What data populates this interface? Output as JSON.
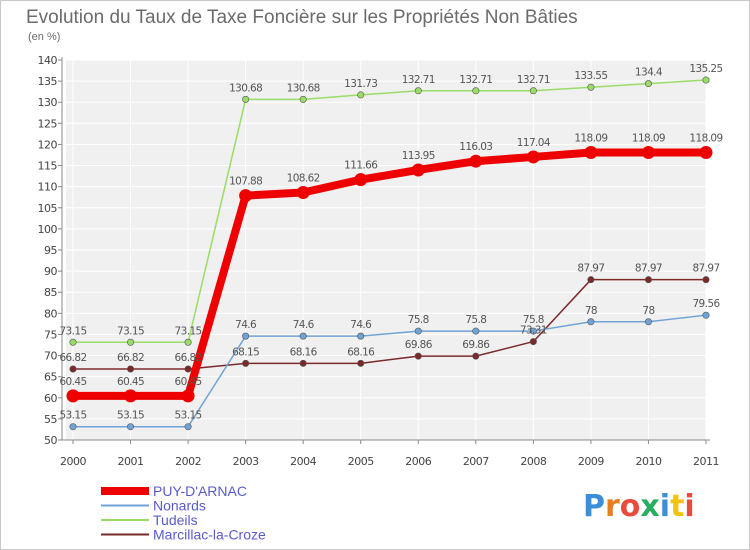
{
  "chart_data": {
    "type": "line",
    "title": "Evolution du Taux de Taxe Foncière sur les Propriétés Non Bâties",
    "ylabel": "(en %)",
    "ylim": [
      50,
      140
    ],
    "yticks": [
      50,
      55,
      60,
      65,
      70,
      75,
      80,
      85,
      90,
      95,
      100,
      105,
      110,
      115,
      120,
      125,
      130,
      135,
      140
    ],
    "x": [
      "2000",
      "2001",
      "2002",
      "2003",
      "2004",
      "2005",
      "2006",
      "2007",
      "2008",
      "2009",
      "2010",
      "2011"
    ],
    "series": [
      {
        "name": "PUY-D'ARNAC",
        "color": "#ee0000",
        "values": [
          60.45,
          60.45,
          60.45,
          107.88,
          108.62,
          111.66,
          113.95,
          116.03,
          117.04,
          118.09,
          118.09,
          118.09
        ],
        "labels": [
          "60.45",
          "60.45",
          "60.45",
          "107.88",
          "108.62",
          "111.66",
          "113.95",
          "116.03",
          "117.04",
          "118.09",
          "118.09",
          "118.09"
        ]
      },
      {
        "name": "Nonards",
        "color": "#6fa3d6",
        "values": [
          53.15,
          53.15,
          53.15,
          74.6,
          74.6,
          74.6,
          75.8,
          75.8,
          75.8,
          78,
          78,
          79.56
        ],
        "labels": [
          "53.15",
          "53.15",
          "53.15",
          "74.6",
          "74.6",
          "74.6",
          "75.8",
          "75.8",
          "75.8",
          "78",
          "78",
          "79.56"
        ]
      },
      {
        "name": "Tudeils",
        "color": "#99dd66",
        "values": [
          73.15,
          73.15,
          73.15,
          130.68,
          130.68,
          131.73,
          132.71,
          132.71,
          132.71,
          133.55,
          134.4,
          135.25
        ],
        "labels": [
          "73.15",
          "73.15",
          "73.15",
          "130.68",
          "130.68",
          "131.73",
          "132.71",
          "132.71",
          "132.71",
          "133.55",
          "134.4",
          "135.25"
        ]
      },
      {
        "name": "Marcillac-la-Croze",
        "color": "#7a2a2a",
        "values": [
          66.82,
          66.82,
          66.82,
          68.15,
          68.16,
          68.16,
          69.86,
          69.86,
          73.31,
          87.97,
          87.97,
          87.97
        ],
        "labels": [
          "66.82",
          "66.82",
          "66.82",
          "68.15",
          "68.16",
          "68.16",
          "69.86",
          "69.86",
          "73.31",
          "87.97",
          "87.97",
          "87.97"
        ]
      }
    ],
    "legend_position": "bottom-left",
    "grid": true
  },
  "brand": {
    "letters": [
      "P",
      "r",
      "o",
      "x",
      "i",
      "t",
      "i"
    ],
    "colors": [
      "#3a8fd8",
      "#e67e22",
      "#e74c3c",
      "#27ae60",
      "#3a8fd8",
      "#f1c40f",
      "#e74c3c"
    ]
  }
}
